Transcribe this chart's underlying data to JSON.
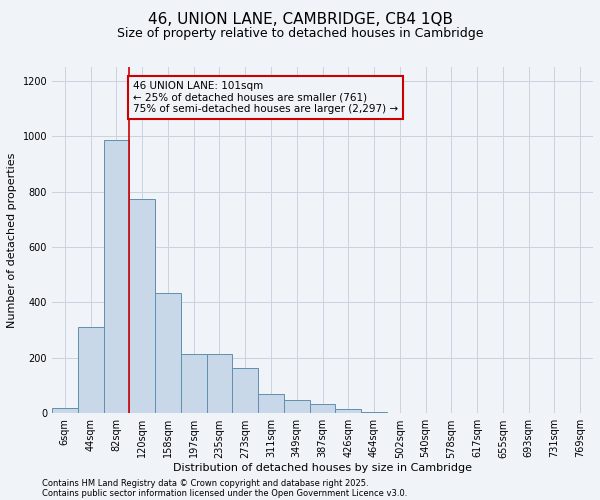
{
  "title": "46, UNION LANE, CAMBRIDGE, CB4 1QB",
  "subtitle": "Size of property relative to detached houses in Cambridge",
  "xlabel": "Distribution of detached houses by size in Cambridge",
  "ylabel": "Number of detached properties",
  "bar_labels": [
    "6sqm",
    "44sqm",
    "82sqm",
    "120sqm",
    "158sqm",
    "197sqm",
    "235sqm",
    "273sqm",
    "311sqm",
    "349sqm",
    "387sqm",
    "426sqm",
    "464sqm",
    "502sqm",
    "540sqm",
    "578sqm",
    "617sqm",
    "655sqm",
    "693sqm",
    "731sqm",
    "769sqm"
  ],
  "bar_values": [
    20,
    310,
    985,
    775,
    435,
    215,
    215,
    165,
    70,
    48,
    32,
    15,
    3,
    0,
    0,
    0,
    0,
    0,
    0,
    0,
    2
  ],
  "bar_color": "#c8d8e8",
  "bar_edgecolor": "#6090b0",
  "vline_index": 2,
  "vline_color": "#cc0000",
  "ylim": [
    0,
    1250
  ],
  "yticks": [
    0,
    200,
    400,
    600,
    800,
    1000,
    1200
  ],
  "annotation_line1": "46 UNION LANE: 101sqm",
  "annotation_line2": "← 25% of detached houses are smaller (761)",
  "annotation_line3": "75% of semi-detached houses are larger (2,297) →",
  "annotation_box_color": "#cc0000",
  "footnote1": "Contains HM Land Registry data © Crown copyright and database right 2025.",
  "footnote2": "Contains public sector information licensed under the Open Government Licence v3.0.",
  "background_color": "#f0f4f8",
  "grid_color": "#c8d4e0",
  "title_fontsize": 11,
  "subtitle_fontsize": 9,
  "axis_label_fontsize": 8,
  "tick_fontsize": 7,
  "annotation_fontsize": 7.5,
  "footnote_fontsize": 6
}
